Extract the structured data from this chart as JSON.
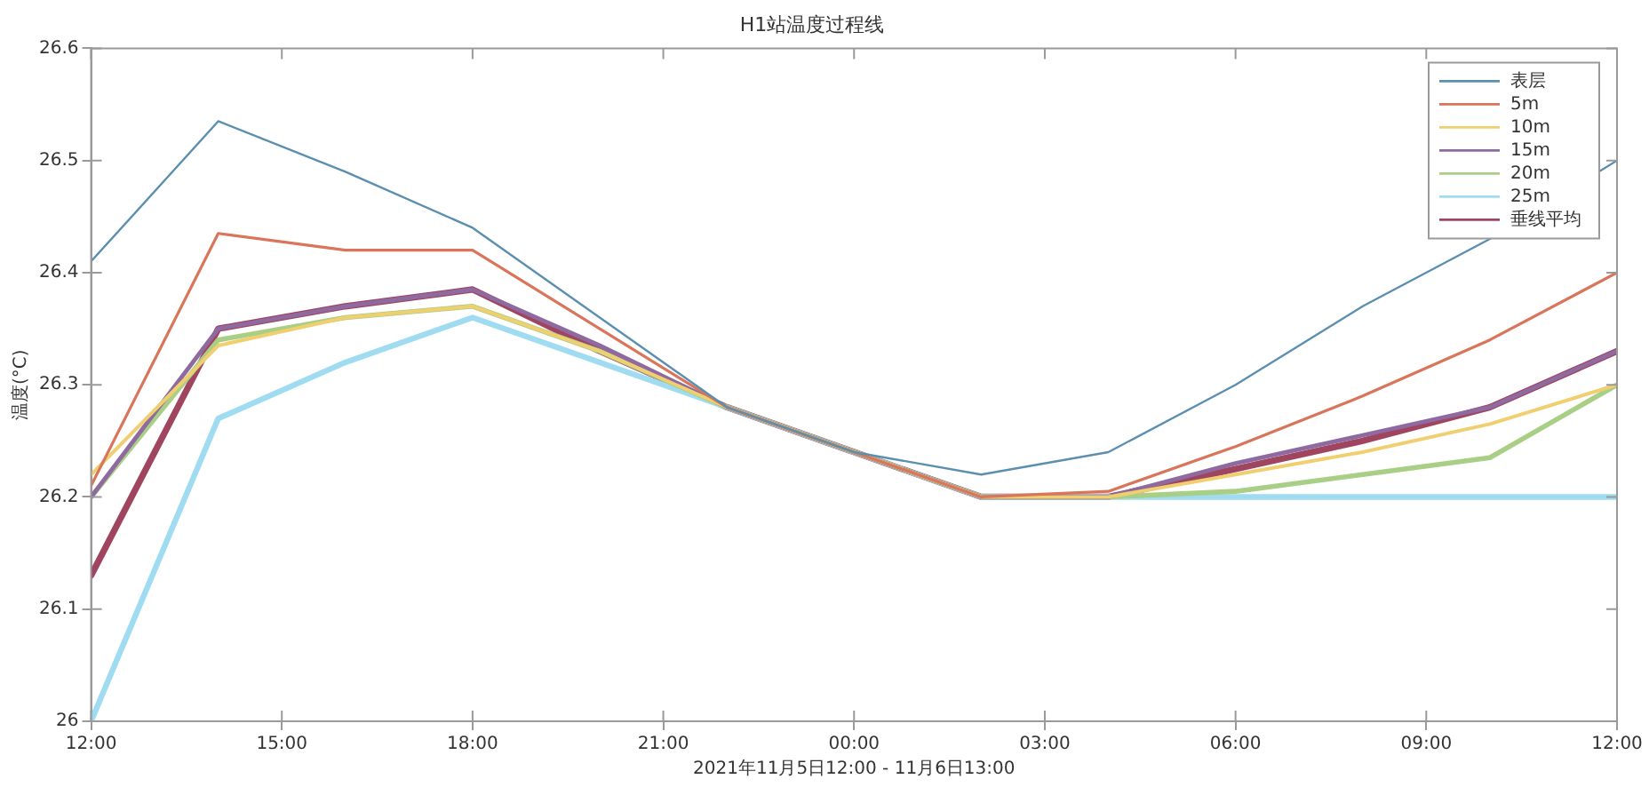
{
  "chart_data": {
    "type": "line",
    "title": "H1站温度过程线",
    "xlabel": "2021年11月5日12:00 - 11月6日13:00",
    "ylabel": "温度(°C)",
    "x": [
      "2021-11-05T12:00",
      "2021-11-05T14:00",
      "2021-11-05T16:00",
      "2021-11-05T18:00",
      "2021-11-05T20:00",
      "2021-11-05T22:00",
      "2021-11-06T00:00",
      "2021-11-06T02:00",
      "2021-11-06T04:00",
      "2021-11-06T06:00",
      "2021-11-06T08:00",
      "2021-11-06T10:00",
      "2021-11-06T12:00"
    ],
    "xlim": [
      "2021-11-05T12:00",
      "2021-11-06T12:00"
    ],
    "xticks": [
      {
        "value": "2021-11-05T12:00",
        "label": "12:00"
      },
      {
        "value": "2021-11-05T15:00",
        "label": "15:00"
      },
      {
        "value": "2021-11-05T18:00",
        "label": "18:00"
      },
      {
        "value": "2021-11-05T21:00",
        "label": "21:00"
      },
      {
        "value": "2021-11-06T00:00",
        "label": "00:00"
      },
      {
        "value": "2021-11-06T03:00",
        "label": "03:00"
      },
      {
        "value": "2021-11-06T06:00",
        "label": "06:00"
      },
      {
        "value": "2021-11-06T09:00",
        "label": "09:00"
      },
      {
        "value": "2021-11-06T12:00",
        "label": "12:00"
      }
    ],
    "ylim": [
      26,
      26.6
    ],
    "yticks": [
      26,
      26.1,
      26.2,
      26.3,
      26.4,
      26.5,
      26.6
    ],
    "grid": false,
    "legend": "top right",
    "marker": "none",
    "line_style": "solid",
    "series": [
      {
        "name": "表层",
        "color": "#5b8fb0",
        "values": [
          26.41,
          26.535,
          26.49,
          26.44,
          26.36,
          26.28,
          26.24,
          26.22,
          26.24,
          26.3,
          26.37,
          26.43,
          26.5
        ]
      },
      {
        "name": "5m",
        "color": "#d9755a",
        "values": [
          26.21,
          26.435,
          26.42,
          26.42,
          26.35,
          26.28,
          26.24,
          26.2,
          26.205,
          26.245,
          26.29,
          26.34,
          26.4
        ]
      },
      {
        "name": "10m",
        "color": "#f0cf70",
        "values": [
          26.22,
          26.335,
          26.36,
          26.37,
          26.33,
          26.28,
          26.24,
          26.2,
          26.2,
          26.22,
          26.24,
          26.265,
          26.3
        ]
      },
      {
        "name": "15m",
        "color": "#8e6aa0",
        "values": [
          26.2,
          26.35,
          26.37,
          26.385,
          26.335,
          26.28,
          26.24,
          26.2,
          26.2,
          26.23,
          26.255,
          26.28,
          26.33
        ]
      },
      {
        "name": "20m",
        "color": "#a8cf85",
        "values": [
          26.2,
          26.34,
          26.36,
          26.37,
          26.33,
          26.28,
          26.24,
          26.2,
          26.2,
          26.205,
          26.22,
          26.235,
          26.3
        ]
      },
      {
        "name": "25m",
        "color": "#9fdcf2",
        "values": [
          26,
          26.27,
          26.32,
          26.36,
          26.32,
          26.28,
          26.24,
          26.2,
          26.2,
          26.2,
          26.2,
          26.2,
          26.2
        ]
      },
      {
        "name": "垂线平均",
        "color": "#a04560",
        "values": [
          26.13,
          26.35,
          26.37,
          26.385,
          26.33,
          26.28,
          26.24,
          26.2,
          26.2,
          26.225,
          26.25,
          26.28,
          26.33
        ]
      }
    ]
  }
}
